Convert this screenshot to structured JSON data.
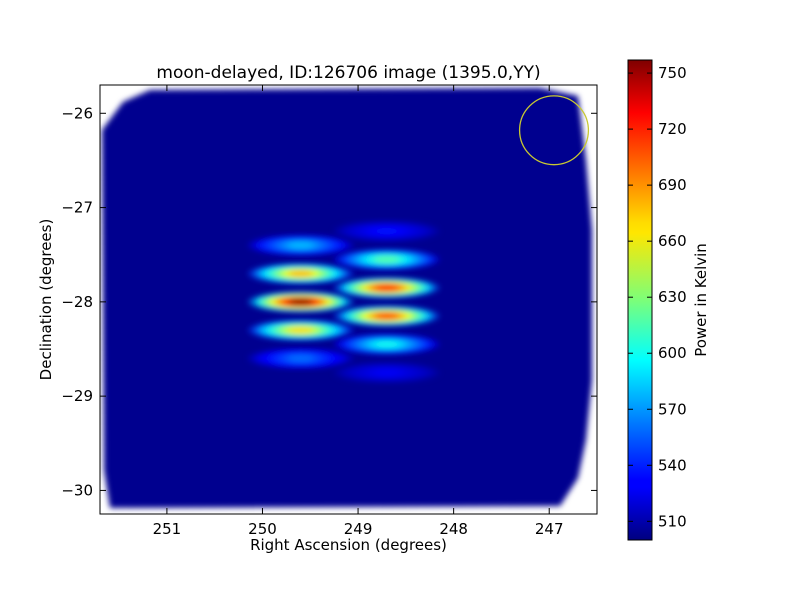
{
  "chart_data": {
    "type": "heatmap",
    "title": "moon-delayed, ID:126706 image (1395.0,YY)",
    "xlabel": "Right Ascension (degrees)",
    "ylabel": "Declination (degrees)",
    "xlim": [
      251.7,
      246.5
    ],
    "ylim": [
      -30.25,
      -25.7
    ],
    "xticks": [
      251,
      250,
      249,
      248,
      247
    ],
    "xtick_labels": [
      "251",
      "250",
      "249",
      "248",
      "247"
    ],
    "yticks": [
      -26,
      -27,
      -28,
      -29,
      -30
    ],
    "ytick_labels": [
      "−26",
      "−27",
      "−28",
      "−29",
      "−30"
    ],
    "colorbar": {
      "label": "Power in Kelvin",
      "range": [
        500,
        757
      ],
      "ticks": [
        510,
        540,
        570,
        600,
        630,
        660,
        690,
        720,
        750
      ],
      "tick_labels": [
        "510",
        "540",
        "570",
        "600",
        "630",
        "660",
        "690",
        "720",
        "750"
      ],
      "colormap": "jet"
    },
    "background_level": 508,
    "sources": [
      {
        "ra": 249.5,
        "dec": -28.0,
        "peak": 757
      },
      {
        "ra": 248.7,
        "dec": -27.85,
        "peak": 720
      },
      {
        "ra": 248.7,
        "dec": -28.15,
        "peak": 710
      }
    ],
    "fringes": [
      {
        "ra": 249.6,
        "dec": -27.4,
        "peak": 580
      },
      {
        "ra": 249.6,
        "dec": -27.7,
        "peak": 680
      },
      {
        "ra": 249.6,
        "dec": -28.0,
        "peak": 757
      },
      {
        "ra": 249.6,
        "dec": -28.3,
        "peak": 670
      },
      {
        "ra": 249.6,
        "dec": -28.6,
        "peak": 560
      },
      {
        "ra": 248.7,
        "dec": -27.25,
        "peak": 535
      },
      {
        "ra": 248.7,
        "dec": -27.55,
        "peak": 620
      },
      {
        "ra": 248.7,
        "dec": -27.85,
        "peak": 720
      },
      {
        "ra": 248.7,
        "dec": -28.15,
        "peak": 710
      },
      {
        "ra": 248.7,
        "dec": -28.45,
        "peak": 600
      },
      {
        "ra": 248.7,
        "dec": -28.75,
        "peak": 530
      }
    ],
    "marker_circle": {
      "ra": 246.95,
      "dec": -26.18,
      "radius_deg": 0.36,
      "color": "#c8c832"
    },
    "grid": false
  }
}
